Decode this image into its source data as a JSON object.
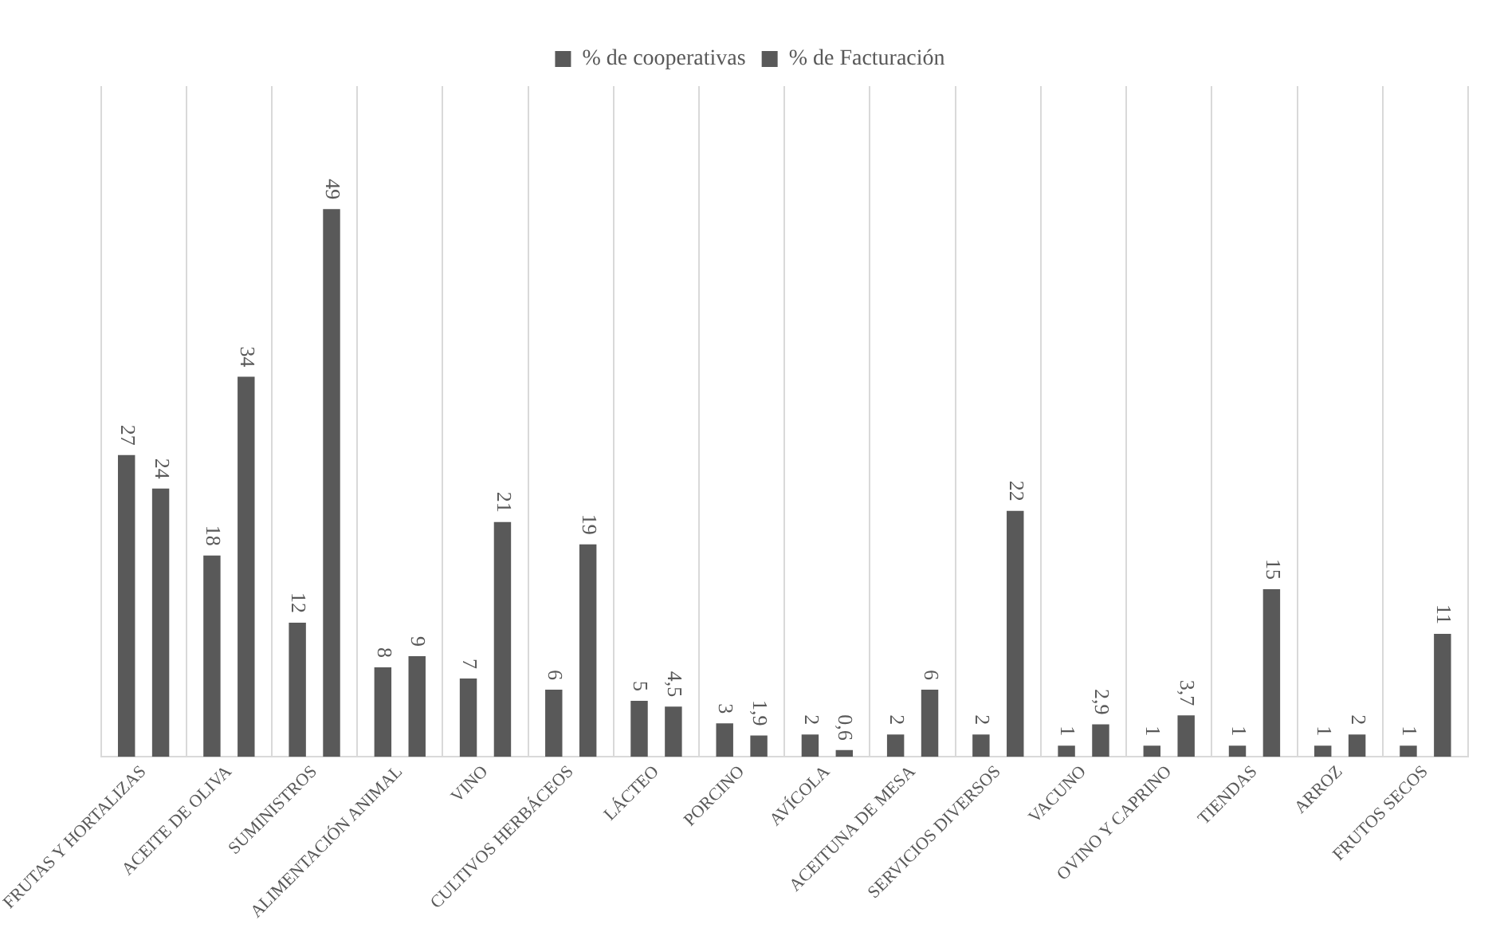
{
  "chart_data": {
    "type": "bar",
    "categories": [
      "FRUTAS Y HORTALIZAS",
      "ACEITE DE OLIVA",
      "SUMINISTROS",
      "ALIMENTACIÓN ANIMAL",
      "VINO",
      "CULTIVOS HERBÁCEOS",
      "LÁCTEO",
      "PORCINO",
      "AVÍCOLA",
      "ACEITUNA DE MESA",
      "SERVICIOS DIVERSOS",
      "VACUNO",
      "OVINO Y CAPRINO",
      "TIENDAS",
      "ARROZ",
      "FRUTOS SECOS"
    ],
    "series": [
      {
        "name": "% de cooperativas",
        "color": "#595959",
        "values": [
          27,
          18,
          12,
          8,
          7,
          6,
          5,
          3,
          2,
          2,
          2,
          1,
          1,
          1,
          1,
          1
        ],
        "value_labels": [
          "27",
          "18",
          "12",
          "8",
          "7",
          "6",
          "5",
          "3",
          "2",
          "2",
          "2",
          "1",
          "1",
          "1",
          "1",
          "1"
        ]
      },
      {
        "name": "% de Facturación",
        "color": "#595959",
        "values": [
          24,
          34,
          49,
          9,
          21,
          19,
          4.5,
          1.9,
          0.6,
          6,
          22,
          2.9,
          3.7,
          15,
          2,
          11
        ],
        "value_labels": [
          "24",
          "34",
          "49",
          "9",
          "21",
          "19",
          "4,5",
          "1,9",
          "0,6",
          "6",
          "22",
          "2,9",
          "3,7",
          "15",
          "2",
          "11"
        ]
      }
    ],
    "legend": "top",
    "grid": "x"
  }
}
